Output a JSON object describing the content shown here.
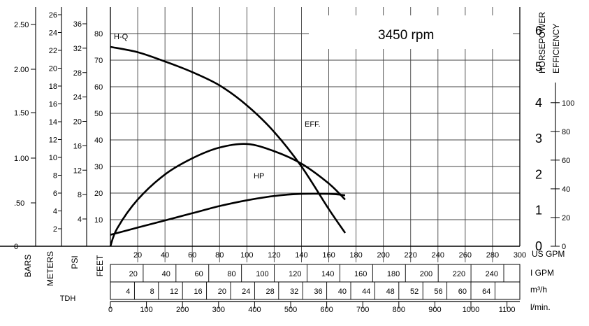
{
  "chart_data": {
    "type": "line",
    "title": "3450 rpm",
    "xlabel": "US GPM",
    "x_range": [
      0,
      300
    ],
    "x_ticks": [
      20,
      40,
      60,
      80,
      100,
      120,
      140,
      160,
      180,
      200,
      220,
      240,
      260,
      280,
      300
    ],
    "ylabel": "FEET",
    "y_range": [
      0,
      90
    ],
    "y_ticks": [
      10,
      20,
      30,
      40,
      50,
      60,
      70,
      80
    ],
    "left_axes": [
      {
        "label": "BARS",
        "ticks": [
          "2.50",
          "2.00",
          "1.50",
          "1.00",
          ".50",
          "0"
        ]
      },
      {
        "label": "METERS",
        "ticks": [
          "26",
          "24",
          "22",
          "20",
          "18",
          "16",
          "14",
          "12",
          "10",
          "8",
          "6",
          "4",
          "2"
        ]
      },
      {
        "label": "PSI",
        "ticks": [
          "36",
          "32",
          "28",
          "24",
          "20",
          "16",
          "12",
          "8",
          "4"
        ]
      }
    ],
    "left_group_label": "TDH",
    "right_axes": [
      {
        "label": "HORSEPOWER",
        "ticks": [
          "6",
          "5",
          "4",
          "3",
          "2",
          "1",
          "0"
        ]
      },
      {
        "label": "EFFICIENCY",
        "ticks": [
          "100",
          "80",
          "60",
          "40",
          "20",
          "0"
        ]
      }
    ],
    "bottom_axes": [
      {
        "label": "I GPM",
        "ticks": [
          "20",
          "40",
          "60",
          "80",
          "100",
          "120",
          "140",
          "160",
          "180",
          "200",
          "220",
          "240"
        ]
      },
      {
        "label": "m³/h",
        "ticks": [
          "4",
          "8",
          "12",
          "16",
          "20",
          "24",
          "28",
          "32",
          "36",
          "40",
          "44",
          "48",
          "52",
          "56",
          "60",
          "64"
        ]
      },
      {
        "label": "l/min.",
        "ticks": [
          "0",
          "100",
          "200",
          "300",
          "400",
          "500",
          "600",
          "700",
          "800",
          "900",
          "1000",
          "1100"
        ]
      }
    ],
    "series": [
      {
        "name": "H-Q",
        "unit": "feet",
        "x": [
          0,
          20,
          40,
          60,
          80,
          100,
          120,
          140,
          160,
          172
        ],
        "y": [
          75,
          73,
          69.5,
          65.5,
          60.5,
          53,
          43,
          30,
          14,
          5
        ]
      },
      {
        "name": "EFF.",
        "unit": "percent",
        "x": [
          0,
          20,
          40,
          60,
          80,
          100,
          120,
          140,
          160,
          172
        ],
        "y": [
          8,
          13,
          18,
          23,
          28,
          32,
          35,
          36.5,
          36.5,
          35.5
        ]
      },
      {
        "name": "HP",
        "unit": "hp",
        "x": [
          0,
          5,
          20,
          40,
          60,
          80,
          100,
          120,
          140,
          160,
          172
        ],
        "y": [
          0,
          0.5,
          1.3,
          2.0,
          2.45,
          2.75,
          2.85,
          2.65,
          2.3,
          1.75,
          1.3
        ]
      }
    ],
    "grid": true
  }
}
